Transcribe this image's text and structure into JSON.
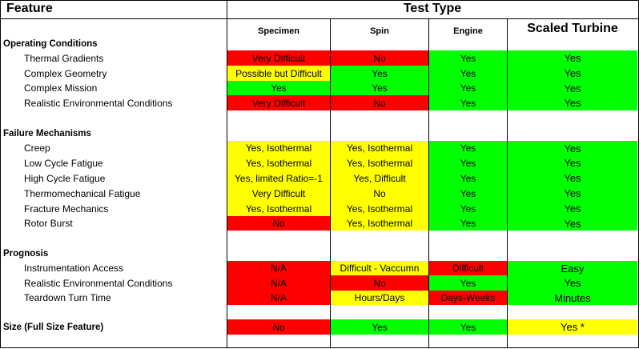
{
  "header": {
    "feature_label": "Feature",
    "test_type_label": "Test Type",
    "columns": [
      "Specimen",
      "Spin",
      "Engine",
      "Scaled Turbine"
    ]
  },
  "colors": {
    "red": "#ff0000",
    "yellow": "#ffff00",
    "green": "#00ff00",
    "white": "#ffffff"
  },
  "rows": [
    {
      "type": "section",
      "label": "Operating Conditions"
    },
    {
      "type": "data",
      "label": "Thermal Gradients",
      "cells": [
        {
          "text": "Very Difficult",
          "color": "red"
        },
        {
          "text": "No",
          "color": "red"
        },
        {
          "text": "Yes",
          "color": "green"
        },
        {
          "text": "Yes",
          "color": "green"
        }
      ]
    },
    {
      "type": "data",
      "label": "Complex Geometry",
      "cells": [
        {
          "text": "Possible but Difficult",
          "color": "yellow"
        },
        {
          "text": "Yes",
          "color": "green"
        },
        {
          "text": "Yes",
          "color": "green"
        },
        {
          "text": "Yes",
          "color": "green"
        }
      ]
    },
    {
      "type": "data",
      "label": "Complex Mission",
      "cells": [
        {
          "text": "Yes",
          "color": "green"
        },
        {
          "text": "Yes",
          "color": "green"
        },
        {
          "text": "Yes",
          "color": "green"
        },
        {
          "text": "Yes",
          "color": "green"
        }
      ]
    },
    {
      "type": "data",
      "label": "Realistic Environmental Conditions",
      "cells": [
        {
          "text": "Very Difficult",
          "color": "red"
        },
        {
          "text": "No",
          "color": "red"
        },
        {
          "text": "Yes",
          "color": "green"
        },
        {
          "text": "Yes",
          "color": "green"
        }
      ]
    },
    {
      "type": "spacer"
    },
    {
      "type": "section",
      "label": "Failure Mechanisms"
    },
    {
      "type": "data",
      "label": "Creep",
      "cells": [
        {
          "text": "Yes, Isothermal",
          "color": "yellow"
        },
        {
          "text": "Yes, Isothermal",
          "color": "yellow"
        },
        {
          "text": "Yes",
          "color": "green"
        },
        {
          "text": "Yes",
          "color": "green"
        }
      ]
    },
    {
      "type": "data",
      "label": "Low Cycle Fatigue",
      "cells": [
        {
          "text": "Yes, Isothermal",
          "color": "yellow"
        },
        {
          "text": "Yes, Isothermal",
          "color": "yellow"
        },
        {
          "text": "Yes",
          "color": "green"
        },
        {
          "text": "Yes",
          "color": "green"
        }
      ]
    },
    {
      "type": "data",
      "label": "High Cycle Fatigue",
      "cells": [
        {
          "text": "Yes, limited Ratio=-1",
          "color": "yellow"
        },
        {
          "text": "Yes, Difficult",
          "color": "yellow"
        },
        {
          "text": "Yes",
          "color": "green"
        },
        {
          "text": "Yes",
          "color": "green"
        }
      ]
    },
    {
      "type": "data",
      "label": "Thermomechanical Fatigue",
      "cells": [
        {
          "text": "Very Difficult",
          "color": "yellow"
        },
        {
          "text": "No",
          "color": "yellow"
        },
        {
          "text": "Yes",
          "color": "green"
        },
        {
          "text": "Yes",
          "color": "green"
        }
      ]
    },
    {
      "type": "data",
      "label": "Fracture Mechanics",
      "cells": [
        {
          "text": "Yes, Isothermal",
          "color": "yellow"
        },
        {
          "text": "Yes, Isothermal",
          "color": "yellow"
        },
        {
          "text": "Yes",
          "color": "green"
        },
        {
          "text": "Yes",
          "color": "green"
        }
      ]
    },
    {
      "type": "data",
      "label": "Rotor Burst",
      "cells": [
        {
          "text": "No",
          "color": "red"
        },
        {
          "text": "Yes, Isothermal",
          "color": "yellow"
        },
        {
          "text": "Yes",
          "color": "green"
        },
        {
          "text": "Yes",
          "color": "green"
        }
      ]
    },
    {
      "type": "spacer"
    },
    {
      "type": "section",
      "label": "Prognosis"
    },
    {
      "type": "data",
      "label": "Instrumentation Access",
      "cells": [
        {
          "text": "N/A",
          "color": "red"
        },
        {
          "text": "Difficult - Vaccumn",
          "color": "yellow"
        },
        {
          "text": "Difficult",
          "color": "red"
        },
        {
          "text": "Easy",
          "color": "green"
        }
      ]
    },
    {
      "type": "data",
      "label": "Realistic Environmental Conditions",
      "cells": [
        {
          "text": "N/A",
          "color": "red"
        },
        {
          "text": "No",
          "color": "red"
        },
        {
          "text": "Yes",
          "color": "green"
        },
        {
          "text": "Yes",
          "color": "green"
        }
      ]
    },
    {
      "type": "data",
      "label": "Teardown Turn Time",
      "cells": [
        {
          "text": "N/A",
          "color": "red"
        },
        {
          "text": "Hours/Days",
          "color": "yellow"
        },
        {
          "text": "Days-Weeks",
          "color": "red"
        },
        {
          "text": "Minutes",
          "color": "green"
        }
      ]
    },
    {
      "type": "spacer"
    },
    {
      "type": "sectiondata",
      "label": "Size (Full Size Feature)",
      "cells": [
        {
          "text": "No",
          "color": "red"
        },
        {
          "text": "Yes",
          "color": "green"
        },
        {
          "text": "Yes",
          "color": "green"
        },
        {
          "text": "Yes *",
          "color": "yellow"
        }
      ]
    },
    {
      "type": "spacer"
    }
  ]
}
